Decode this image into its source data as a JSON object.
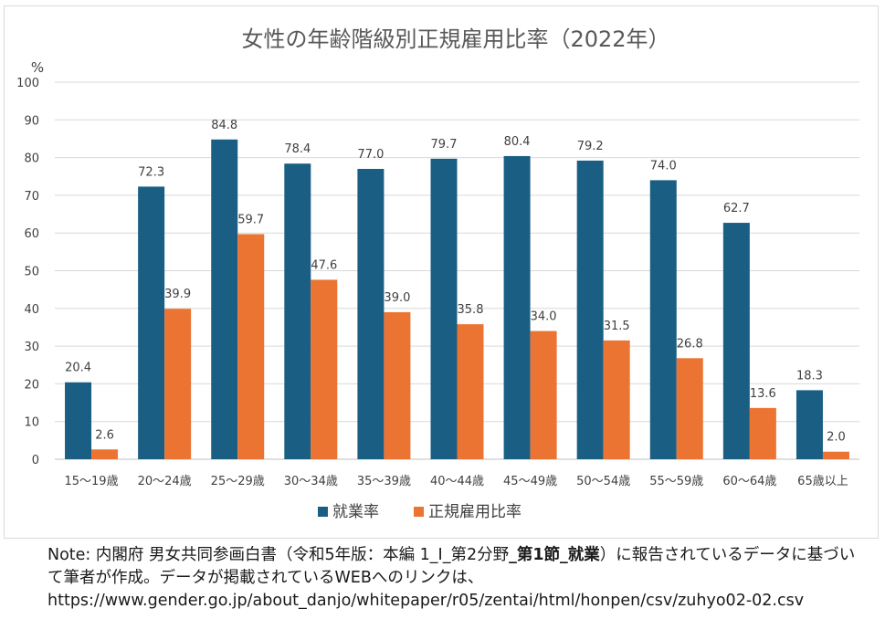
{
  "chart_data": {
    "type": "bar",
    "title": "女性の年齢階級別正規雇用比率（2022年）",
    "ylabel": "%",
    "ylim": [
      0,
      100
    ],
    "yticks": [
      0,
      10,
      20,
      30,
      40,
      50,
      60,
      70,
      80,
      90,
      100
    ],
    "grid": true,
    "legend_position": "bottom",
    "categories": [
      "15～19歳",
      "20～24歳",
      "25～29歳",
      "30～34歳",
      "35～39歳",
      "40～44歳",
      "45～49歳",
      "50～54歳",
      "55～59歳",
      "60～64歳",
      "65歳以上"
    ],
    "series": [
      {
        "name": "就業率",
        "color": "#1a5f83",
        "values": [
          20.4,
          72.3,
          84.8,
          78.4,
          77.0,
          79.7,
          80.4,
          79.2,
          74.0,
          62.7,
          18.3
        ]
      },
      {
        "name": "正規雇用比率",
        "color": "#ec7433",
        "values": [
          2.6,
          39.9,
          59.7,
          47.6,
          39.0,
          35.8,
          34.0,
          31.5,
          26.8,
          13.6,
          2.0
        ]
      }
    ]
  },
  "note": {
    "prefix": "Note: 内閣府 男女共同参画白書（令和5年版：本編 1_Ⅰ_第2分野",
    "strong": "_第1節_就業",
    "rest": "）に報告されているデータに基づいて筆者が作成。データが掲載されているWEBへのリンクは、",
    "url": "https://www.gender.go.jp/about_danjo/whitepaper/r05/zentai/html/honpen/csv/zuhyo02-02.csv"
  }
}
